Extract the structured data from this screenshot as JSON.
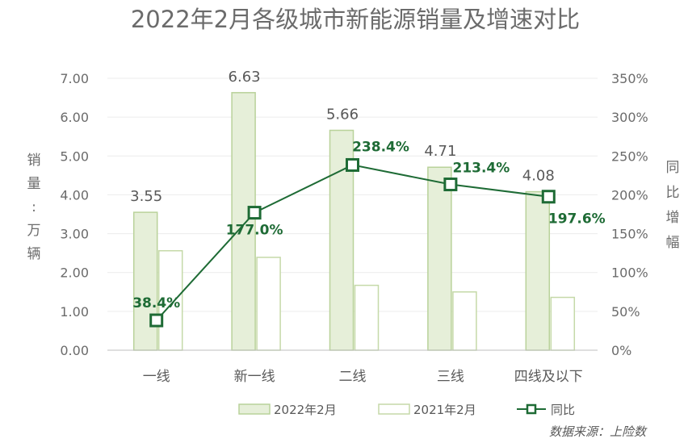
{
  "chart_data": {
    "type": "bar",
    "title": "2022年2月各级城市新能源销量及增速对比",
    "categories": [
      "一线",
      "新一线",
      "二线",
      "三线",
      "四线及以下"
    ],
    "series": [
      {
        "name": "2022年2月",
        "type": "bar",
        "values": [
          3.55,
          6.63,
          5.66,
          4.71,
          4.08
        ],
        "labels": [
          "3.55",
          "6.63",
          "5.66",
          "4.71",
          "4.08"
        ],
        "color": "#e6efd9",
        "stroke": "#b9d29a"
      },
      {
        "name": "2021年2月",
        "type": "bar",
        "values": [
          2.56,
          2.39,
          1.67,
          1.5,
          1.36
        ],
        "color": "#ffffff",
        "stroke": "#c5d9a8"
      },
      {
        "name": "同比",
        "type": "line",
        "axis": "right",
        "values": [
          38.4,
          177.0,
          238.4,
          213.4,
          197.6
        ],
        "labels": [
          "38.4%",
          "177.0%",
          "238.4%",
          "213.4%",
          "197.6%"
        ],
        "color": "#1e6b35"
      }
    ],
    "y_left": {
      "label": [
        "销",
        "量",
        ":",
        "万",
        "辆"
      ],
      "range": [
        0,
        7
      ],
      "ticks": [
        "0.00",
        "1.00",
        "2.00",
        "3.00",
        "4.00",
        "5.00",
        "6.00",
        "7.00"
      ]
    },
    "y_right": {
      "label": [
        "同",
        "比",
        "增",
        "幅"
      ],
      "range": [
        0,
        350
      ],
      "ticks": [
        "0%",
        "50%",
        "100%",
        "150%",
        "200%",
        "250%",
        "300%",
        "350%"
      ]
    },
    "legend": [
      "2022年2月",
      "2021年2月",
      "同比"
    ],
    "source": "数据来源：上险数",
    "grid": true
  }
}
